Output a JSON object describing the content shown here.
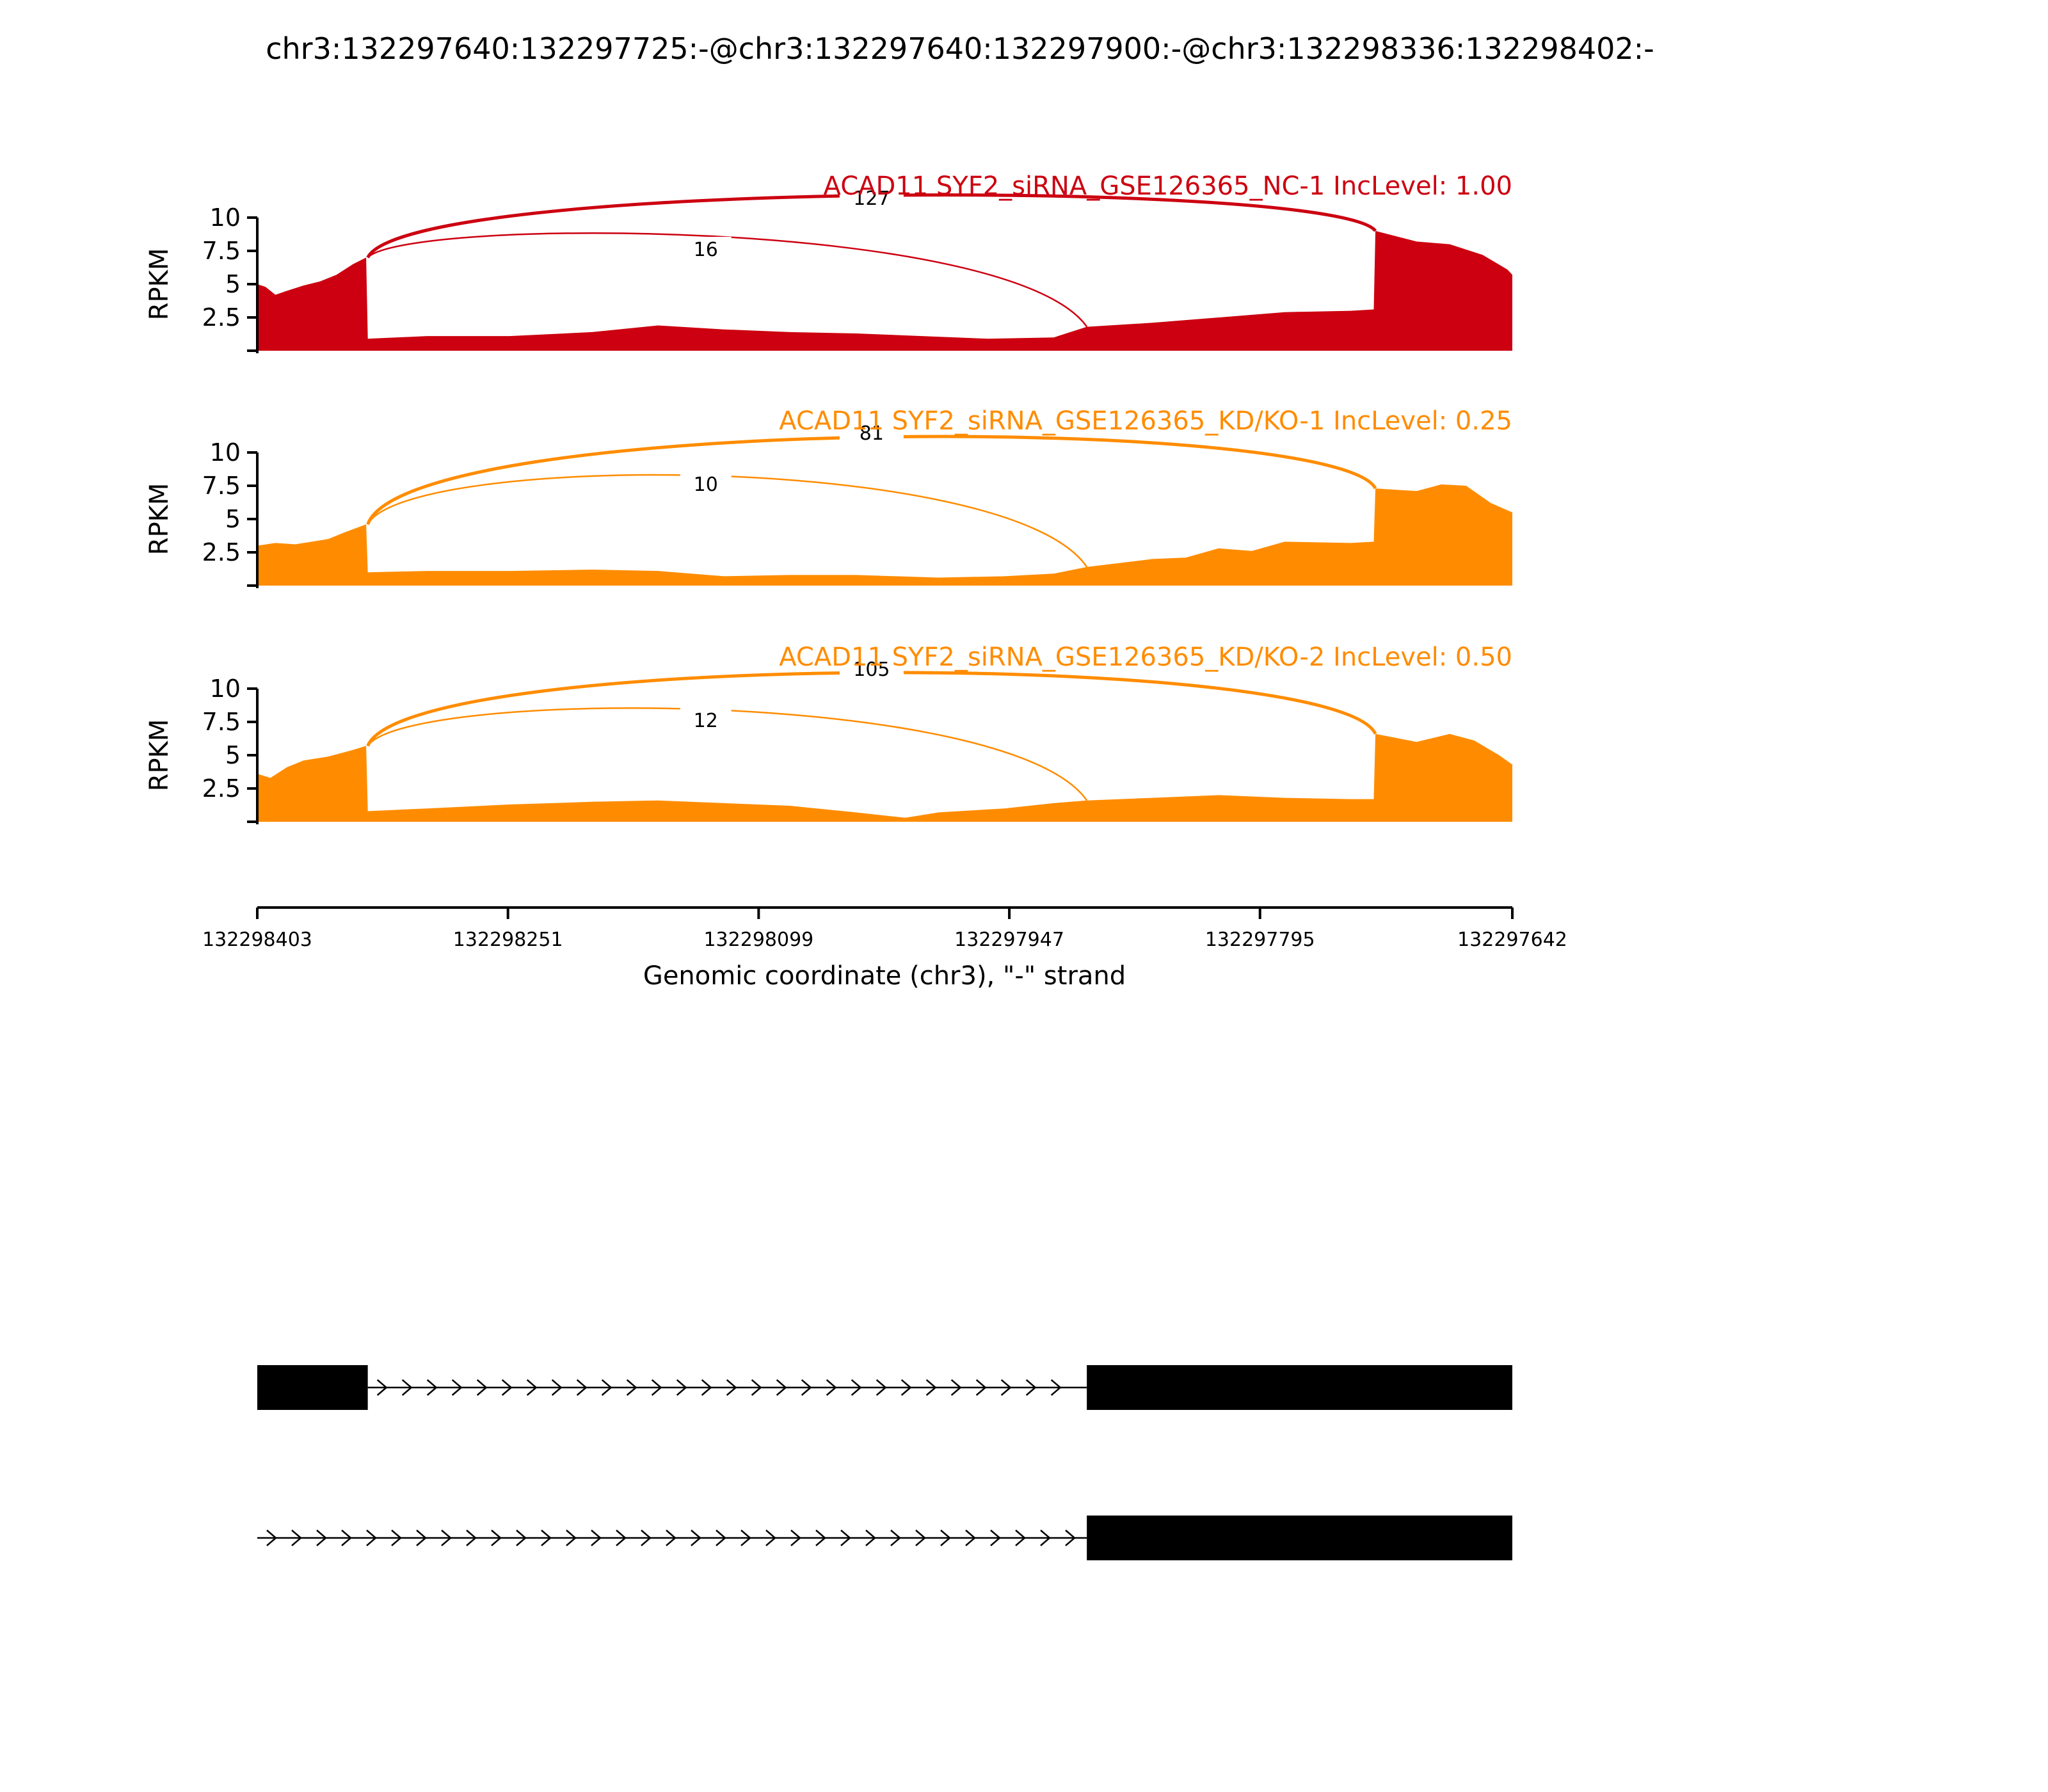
{
  "title": "chr3:132297640:132297725:-@chr3:132297640:132297900:-@chr3:132298336:132298402:-",
  "chart_data": {
    "type": "area",
    "plot_kind": "sashimi",
    "ylabel": "RPKM",
    "y_ticks": [
      "2.5",
      "5",
      "7.5",
      "10"
    ],
    "ylim": [
      0,
      10
    ],
    "xlabel": "Genomic coordinate (chr3), \"-\" strand",
    "x_ticks": [
      "132298403",
      "132298251",
      "132298099",
      "132297947",
      "132297795",
      "132297642"
    ],
    "xlim": [
      132298403,
      132297642
    ],
    "panels": [
      {
        "label": "ACAD11 SYF2_siRNA_GSE126365_NC-1 IncLevel: 1.00",
        "color": "#cc0010",
        "coverage": [
          [
            132298403,
            5.0
          ],
          [
            132298398,
            4.8
          ],
          [
            132298392,
            4.2
          ],
          [
            132298385,
            4.5
          ],
          [
            132298375,
            4.9
          ],
          [
            132298365,
            5.2
          ],
          [
            132298355,
            5.7
          ],
          [
            132298345,
            6.5
          ],
          [
            132298337,
            7.0
          ],
          [
            132298336,
            0.9
          ],
          [
            132298300,
            1.1
          ],
          [
            132298250,
            1.1
          ],
          [
            132298200,
            1.4
          ],
          [
            132298160,
            1.9
          ],
          [
            132298120,
            1.6
          ],
          [
            132298080,
            1.4
          ],
          [
            132298040,
            1.3
          ],
          [
            132298000,
            1.1
          ],
          [
            132297960,
            0.9
          ],
          [
            132297920,
            1.0
          ],
          [
            132297900,
            1.8
          ],
          [
            132297860,
            2.1
          ],
          [
            132297820,
            2.5
          ],
          [
            132297780,
            2.9
          ],
          [
            132297740,
            3.0
          ],
          [
            132297726,
            3.1
          ],
          [
            132297725,
            9.0
          ],
          [
            132297700,
            8.2
          ],
          [
            132297680,
            8.0
          ],
          [
            132297660,
            7.2
          ],
          [
            132297645,
            6.1
          ],
          [
            132297642,
            5.7
          ]
        ],
        "junctions": [
          {
            "from": 132298336,
            "to": 132297725,
            "count": "127"
          },
          {
            "from": 132298336,
            "to": 132297900,
            "count": "16"
          }
        ]
      },
      {
        "label": "ACAD11 SYF2_siRNA_GSE126365_KD/KO-1 IncLevel: 0.25",
        "color": "#ff8c00",
        "coverage": [
          [
            132298403,
            3.0
          ],
          [
            132298392,
            3.2
          ],
          [
            132298380,
            3.1
          ],
          [
            132298370,
            3.3
          ],
          [
            132298360,
            3.5
          ],
          [
            132298350,
            4.0
          ],
          [
            132298337,
            4.6
          ],
          [
            132298336,
            1.0
          ],
          [
            132298300,
            1.1
          ],
          [
            132298250,
            1.1
          ],
          [
            132298200,
            1.2
          ],
          [
            132298160,
            1.1
          ],
          [
            132298120,
            0.7
          ],
          [
            132298080,
            0.8
          ],
          [
            132298040,
            0.8
          ],
          [
            132297990,
            0.6
          ],
          [
            132297950,
            0.7
          ],
          [
            132297920,
            0.9
          ],
          [
            132297900,
            1.4
          ],
          [
            132297860,
            2.0
          ],
          [
            132297840,
            2.1
          ],
          [
            132297820,
            2.8
          ],
          [
            132297800,
            2.6
          ],
          [
            132297780,
            3.3
          ],
          [
            132297740,
            3.2
          ],
          [
            132297726,
            3.3
          ],
          [
            132297725,
            7.3
          ],
          [
            132297700,
            7.1
          ],
          [
            132297685,
            7.6
          ],
          [
            132297670,
            7.5
          ],
          [
            132297655,
            6.2
          ],
          [
            132297642,
            5.5
          ]
        ],
        "junctions": [
          {
            "from": 132298336,
            "to": 132297725,
            "count": "81"
          },
          {
            "from": 132298336,
            "to": 132297900,
            "count": "10"
          }
        ]
      },
      {
        "label": "ACAD11 SYF2_siRNA_GSE126365_KD/KO-2 IncLevel: 0.50",
        "color": "#ff8c00",
        "coverage": [
          [
            132298403,
            3.6
          ],
          [
            132298395,
            3.3
          ],
          [
            132298385,
            4.1
          ],
          [
            132298375,
            4.6
          ],
          [
            132298360,
            4.9
          ],
          [
            132298345,
            5.4
          ],
          [
            132298337,
            5.7
          ],
          [
            132298336,
            0.8
          ],
          [
            132298300,
            1.0
          ],
          [
            132298250,
            1.3
          ],
          [
            132298200,
            1.5
          ],
          [
            132298160,
            1.6
          ],
          [
            132298120,
            1.4
          ],
          [
            132298080,
            1.2
          ],
          [
            132298040,
            0.7
          ],
          [
            132298010,
            0.3
          ],
          [
            132297990,
            0.7
          ],
          [
            132297950,
            1.0
          ],
          [
            132297920,
            1.4
          ],
          [
            132297900,
            1.6
          ],
          [
            132297860,
            1.8
          ],
          [
            132297820,
            2.0
          ],
          [
            132297780,
            1.8
          ],
          [
            132297740,
            1.7
          ],
          [
            132297726,
            1.7
          ],
          [
            132297725,
            6.6
          ],
          [
            132297700,
            6.0
          ],
          [
            132297680,
            6.6
          ],
          [
            132297665,
            6.1
          ],
          [
            132297650,
            5.0
          ],
          [
            132297642,
            4.3
          ]
        ],
        "junctions": [
          {
            "from": 132298336,
            "to": 132297725,
            "count": "105"
          },
          {
            "from": 132298336,
            "to": 132297900,
            "count": "12"
          }
        ]
      }
    ],
    "isoforms": [
      {
        "exons": [
          [
            132298403,
            132298336
          ],
          [
            132297900,
            132297642
          ]
        ],
        "intron": [
          132298336,
          132297900
        ]
      },
      {
        "exons": [
          [
            132297900,
            132297642
          ]
        ],
        "intron": [
          132298403,
          132297900
        ]
      }
    ]
  }
}
